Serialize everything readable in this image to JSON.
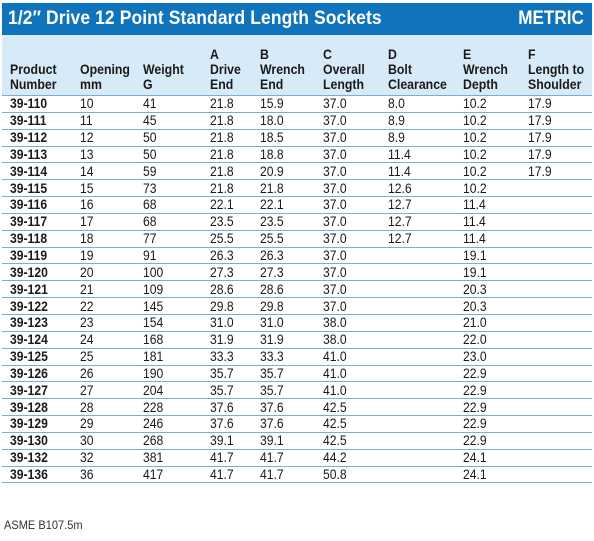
{
  "header": {
    "title": "1/2″ Drive 12 Point Standard Length Sockets",
    "tag": "METRIC"
  },
  "columns": [
    [
      "",
      "Product",
      "Number"
    ],
    [
      "",
      "Opening",
      "mm"
    ],
    [
      "",
      "Weight",
      "G"
    ],
    [
      "A",
      "Drive",
      "End"
    ],
    [
      "B",
      "Wrench",
      "End"
    ],
    [
      "C",
      "Overall",
      "Length"
    ],
    [
      "D",
      "Bolt",
      "Clearance"
    ],
    [
      "E",
      "Wrench",
      "Depth"
    ],
    [
      "F",
      "Length to",
      "Shoulder"
    ]
  ],
  "rows": [
    [
      "39-110",
      "10",
      "41",
      "21.8",
      "15.9",
      "37.0",
      "8.0",
      "10.2",
      "17.9"
    ],
    [
      "39-111",
      "11",
      "45",
      "21.8",
      "18.0",
      "37.0",
      "8.9",
      "10.2",
      "17.9"
    ],
    [
      "39-112",
      "12",
      "50",
      "21.8",
      "18.5",
      "37.0",
      "8.9",
      "10.2",
      "17.9"
    ],
    [
      "39-113",
      "13",
      "50",
      "21.8",
      "18.8",
      "37.0",
      "11.4",
      "10.2",
      "17.9"
    ],
    [
      "39-114",
      "14",
      "59",
      "21.8",
      "20.9",
      "37.0",
      "11.4",
      "10.2",
      "17.9"
    ],
    [
      "39-115",
      "15",
      "73",
      "21.8",
      "21.8",
      "37.0",
      "12.6",
      "10.2",
      ""
    ],
    [
      "39-116",
      "16",
      "68",
      "22.1",
      "22.1",
      "37.0",
      "12.7",
      "11.4",
      ""
    ],
    [
      "39-117",
      "17",
      "68",
      "23.5",
      "23.5",
      "37.0",
      "12.7",
      "11.4",
      ""
    ],
    [
      "39-118",
      "18",
      "77",
      "25.5",
      "25.5",
      "37.0",
      "12.7",
      "11.4",
      ""
    ],
    [
      "39-119",
      "19",
      "91",
      "26.3",
      "26.3",
      "37.0",
      "",
      "19.1",
      ""
    ],
    [
      "39-120",
      "20",
      "100",
      "27.3",
      "27.3",
      "37.0",
      "",
      "19.1",
      ""
    ],
    [
      "39-121",
      "21",
      "109",
      "28.6",
      "28.6",
      "37.0",
      "",
      "20.3",
      ""
    ],
    [
      "39-122",
      "22",
      "145",
      "29.8",
      "29.8",
      "37.0",
      "",
      "20.3",
      ""
    ],
    [
      "39-123",
      "23",
      "154",
      "31.0",
      "31.0",
      "38.0",
      "",
      "21.0",
      ""
    ],
    [
      "39-124",
      "24",
      "168",
      "31.9",
      "31.9",
      "38.0",
      "",
      "22.0",
      ""
    ],
    [
      "39-125",
      "25",
      "181",
      "33.3",
      "33.3",
      "41.0",
      "",
      "23.0",
      ""
    ],
    [
      "39-126",
      "26",
      "190",
      "35.7",
      "35.7",
      "41.0",
      "",
      "22.9",
      ""
    ],
    [
      "39-127",
      "27",
      "204",
      "35.7",
      "35.7",
      "41.0",
      "",
      "22.9",
      ""
    ],
    [
      "39-128",
      "28",
      "228",
      "37.6",
      "37.6",
      "42.5",
      "",
      "22.9",
      ""
    ],
    [
      "39-129",
      "29",
      "246",
      "37.6",
      "37.6",
      "42.5",
      "",
      "22.9",
      ""
    ],
    [
      "39-130",
      "30",
      "268",
      "39.1",
      "39.1",
      "42.5",
      "",
      "22.9",
      ""
    ],
    [
      "39-132",
      "32",
      "381",
      "41.7",
      "41.7",
      "44.2",
      "",
      "24.1",
      ""
    ],
    [
      "39-136",
      "36",
      "417",
      "41.7",
      "41.7",
      "50.8",
      "",
      "24.1",
      ""
    ]
  ],
  "footnote": "ASME B107.5m",
  "colors": {
    "banner": "#0f74bc",
    "header_bg": "#d7eaf7",
    "rule": "#7aaed6"
  }
}
